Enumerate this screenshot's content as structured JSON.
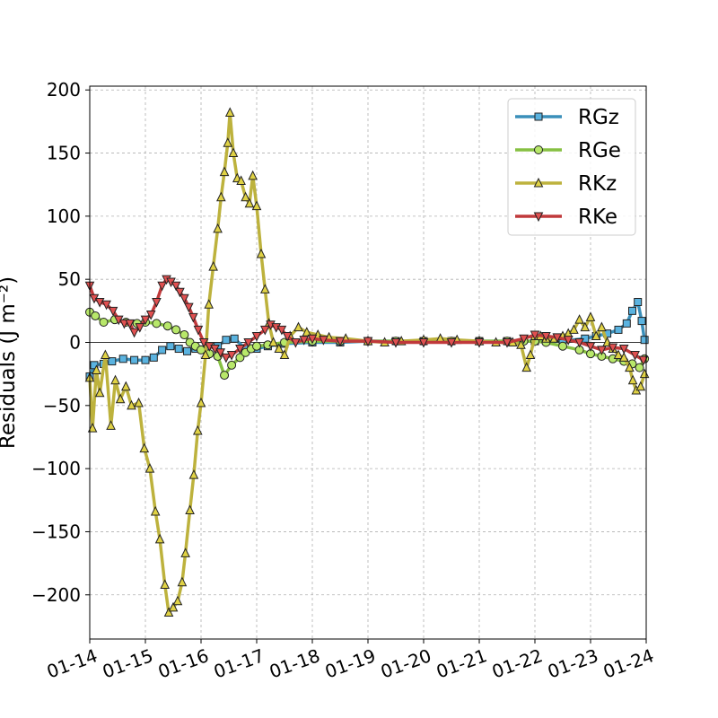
{
  "chart_data": {
    "type": "line",
    "title": "",
    "xlabel": "",
    "ylabel": "Residuals (J m⁻²)",
    "x_ticks": [
      "01-14",
      "01-15",
      "01-16",
      "01-17",
      "01-18",
      "01-19",
      "01-20",
      "01-21",
      "01-22",
      "01-23",
      "01-24"
    ],
    "y_ticks": [
      200,
      150,
      100,
      50,
      0,
      -50,
      -100,
      -150,
      -200
    ],
    "y_tick_labels": [
      "200",
      "150",
      "100",
      "50",
      "0",
      "−50",
      "−100",
      "−150",
      "−200"
    ],
    "xlim": [
      0,
      10
    ],
    "ylim": [
      -235,
      203
    ],
    "grid": true,
    "legend_position": "upper right",
    "series": [
      {
        "name": "RGz",
        "color": "#3a8fba",
        "marker_face": "#5ab3e0",
        "marker": "square",
        "points": [
          [
            0,
            -27
          ],
          [
            0.08,
            -18
          ],
          [
            0.25,
            -17
          ],
          [
            0.4,
            -15
          ],
          [
            0.6,
            -13
          ],
          [
            0.8,
            -14
          ],
          [
            1.0,
            -14
          ],
          [
            1.15,
            -12
          ],
          [
            1.3,
            -6
          ],
          [
            1.45,
            -3
          ],
          [
            1.6,
            -5
          ],
          [
            1.75,
            -7
          ],
          [
            1.9,
            -5
          ],
          [
            2.1,
            -4
          ],
          [
            2.3,
            -3
          ],
          [
            2.45,
            2
          ],
          [
            2.6,
            3
          ],
          [
            2.8,
            -5
          ],
          [
            3.0,
            -5
          ],
          [
            3.2,
            -3
          ],
          [
            3.5,
            -1
          ],
          [
            4,
            0
          ],
          [
            4.5,
            0
          ],
          [
            5,
            1
          ],
          [
            5.5,
            1
          ],
          [
            6,
            1
          ],
          [
            6.5,
            1
          ],
          [
            7,
            1
          ],
          [
            7.5,
            1
          ],
          [
            8,
            1
          ],
          [
            8.5,
            1
          ],
          [
            8.9,
            3
          ],
          [
            9.1,
            5
          ],
          [
            9.3,
            7
          ],
          [
            9.5,
            10
          ],
          [
            9.65,
            15
          ],
          [
            9.75,
            25
          ],
          [
            9.85,
            32
          ],
          [
            9.92,
            17
          ],
          [
            9.97,
            2
          ]
        ]
      },
      {
        "name": "RGe",
        "color": "#86c042",
        "marker_face": "#b8e86a",
        "marker": "circle",
        "points": [
          [
            0,
            24
          ],
          [
            0.1,
            21
          ],
          [
            0.25,
            16
          ],
          [
            0.45,
            18
          ],
          [
            0.65,
            16
          ],
          [
            0.85,
            15
          ],
          [
            1.0,
            16
          ],
          [
            1.2,
            15
          ],
          [
            1.4,
            13
          ],
          [
            1.55,
            10
          ],
          [
            1.7,
            6
          ],
          [
            1.8,
            0
          ],
          [
            1.9,
            -3
          ],
          [
            2.0,
            -6
          ],
          [
            2.15,
            -9
          ],
          [
            2.3,
            -11
          ],
          [
            2.42,
            -26
          ],
          [
            2.55,
            -18
          ],
          [
            2.7,
            -12
          ],
          [
            2.8,
            -8
          ],
          [
            2.9,
            -5
          ],
          [
            3.0,
            -3
          ],
          [
            3.2,
            -2
          ],
          [
            3.5,
            0
          ],
          [
            4,
            1
          ],
          [
            4.5,
            1
          ],
          [
            5,
            1
          ],
          [
            5.5,
            1
          ],
          [
            6,
            1
          ],
          [
            6.5,
            1
          ],
          [
            7,
            1
          ],
          [
            7.5,
            1
          ],
          [
            7.8,
            1
          ],
          [
            8,
            1
          ],
          [
            8.2,
            0
          ],
          [
            8.5,
            -3
          ],
          [
            8.8,
            -6
          ],
          [
            9.0,
            -9
          ],
          [
            9.2,
            -11
          ],
          [
            9.4,
            -13
          ],
          [
            9.6,
            -15
          ],
          [
            9.75,
            -17
          ],
          [
            9.88,
            -20
          ],
          [
            9.97,
            -13
          ]
        ]
      },
      {
        "name": "RKz",
        "color": "#bdb23d",
        "marker_face": "#e0d245",
        "marker": "triangle-up",
        "points": [
          [
            0,
            -28
          ],
          [
            0.05,
            -68
          ],
          [
            0.12,
            -22
          ],
          [
            0.18,
            -40
          ],
          [
            0.28,
            -10
          ],
          [
            0.38,
            -66
          ],
          [
            0.46,
            -30
          ],
          [
            0.55,
            -45
          ],
          [
            0.65,
            -35
          ],
          [
            0.75,
            -50
          ],
          [
            0.88,
            -48
          ],
          [
            0.98,
            -84
          ],
          [
            1.08,
            -100
          ],
          [
            1.18,
            -134
          ],
          [
            1.26,
            -156
          ],
          [
            1.35,
            -192
          ],
          [
            1.42,
            -214
          ],
          [
            1.5,
            -210
          ],
          [
            1.58,
            -205
          ],
          [
            1.66,
            -190
          ],
          [
            1.72,
            -167
          ],
          [
            1.8,
            -133
          ],
          [
            1.87,
            -105
          ],
          [
            1.94,
            -70
          ],
          [
            2.0,
            -48
          ],
          [
            2.08,
            -10
          ],
          [
            2.14,
            30
          ],
          [
            2.22,
            60
          ],
          [
            2.3,
            90
          ],
          [
            2.36,
            115
          ],
          [
            2.42,
            135
          ],
          [
            2.48,
            158
          ],
          [
            2.52,
            182
          ],
          [
            2.58,
            150
          ],
          [
            2.65,
            130
          ],
          [
            2.72,
            128
          ],
          [
            2.8,
            115
          ],
          [
            2.87,
            110
          ],
          [
            2.93,
            132
          ],
          [
            3.0,
            108
          ],
          [
            3.08,
            70
          ],
          [
            3.15,
            42
          ],
          [
            3.22,
            15
          ],
          [
            3.3,
            0
          ],
          [
            3.4,
            -5
          ],
          [
            3.5,
            -10
          ],
          [
            3.6,
            5
          ],
          [
            3.75,
            12
          ],
          [
            3.9,
            8
          ],
          [
            4.1,
            6
          ],
          [
            4.3,
            4
          ],
          [
            4.6,
            3
          ],
          [
            5,
            1
          ],
          [
            5.3,
            0
          ],
          [
            5.6,
            1
          ],
          [
            6,
            2
          ],
          [
            6.3,
            3
          ],
          [
            6.6,
            2
          ],
          [
            7,
            1
          ],
          [
            7.3,
            0
          ],
          [
            7.6,
            0
          ],
          [
            7.75,
            -2
          ],
          [
            7.85,
            -20
          ],
          [
            7.92,
            -10
          ],
          [
            8.0,
            5
          ],
          [
            8.1,
            5
          ],
          [
            8.2,
            3
          ],
          [
            8.35,
            3
          ],
          [
            8.5,
            5
          ],
          [
            8.6,
            7
          ],
          [
            8.7,
            10
          ],
          [
            8.8,
            18
          ],
          [
            8.9,
            12
          ],
          [
            9.0,
            20
          ],
          [
            9.1,
            5
          ],
          [
            9.2,
            12
          ],
          [
            9.3,
            0
          ],
          [
            9.4,
            -5
          ],
          [
            9.5,
            -10
          ],
          [
            9.6,
            -12
          ],
          [
            9.7,
            -20
          ],
          [
            9.76,
            -30
          ],
          [
            9.82,
            -38
          ],
          [
            9.9,
            -35
          ],
          [
            9.97,
            -25
          ]
        ]
      },
      {
        "name": "RKe",
        "color": "#c0393b",
        "marker_face": "#e05050",
        "marker": "triangle-down",
        "points": [
          [
            0,
            45
          ],
          [
            0.08,
            35
          ],
          [
            0.18,
            32
          ],
          [
            0.3,
            30
          ],
          [
            0.42,
            25
          ],
          [
            0.52,
            18
          ],
          [
            0.62,
            15
          ],
          [
            0.72,
            15
          ],
          [
            0.8,
            8
          ],
          [
            0.9,
            12
          ],
          [
            1.0,
            18
          ],
          [
            1.1,
            22
          ],
          [
            1.2,
            32
          ],
          [
            1.3,
            45
          ],
          [
            1.38,
            50
          ],
          [
            1.46,
            48
          ],
          [
            1.55,
            45
          ],
          [
            1.62,
            40
          ],
          [
            1.7,
            35
          ],
          [
            1.78,
            28
          ],
          [
            1.86,
            20
          ],
          [
            1.95,
            10
          ],
          [
            2.05,
            0
          ],
          [
            2.15,
            -3
          ],
          [
            2.25,
            -5
          ],
          [
            2.35,
            -8
          ],
          [
            2.45,
            -12
          ],
          [
            2.55,
            -10
          ],
          [
            2.7,
            -5
          ],
          [
            2.85,
            0
          ],
          [
            3.0,
            5
          ],
          [
            3.15,
            10
          ],
          [
            3.25,
            14
          ],
          [
            3.35,
            12
          ],
          [
            3.45,
            10
          ],
          [
            3.55,
            5
          ],
          [
            3.7,
            0
          ],
          [
            3.85,
            2
          ],
          [
            4.0,
            3
          ],
          [
            4.2,
            2
          ],
          [
            4.5,
            1
          ],
          [
            5,
            1
          ],
          [
            5.5,
            0
          ],
          [
            6,
            0
          ],
          [
            6.5,
            0
          ],
          [
            7,
            0
          ],
          [
            7.5,
            0
          ],
          [
            7.8,
            3
          ],
          [
            8.0,
            6
          ],
          [
            8.2,
            5
          ],
          [
            8.4,
            4
          ],
          [
            8.6,
            2
          ],
          [
            8.8,
            0
          ],
          [
            9.0,
            -3
          ],
          [
            9.2,
            -6
          ],
          [
            9.4,
            -4
          ],
          [
            9.6,
            -5
          ],
          [
            9.8,
            -10
          ],
          [
            9.95,
            -14
          ]
        ]
      }
    ]
  }
}
